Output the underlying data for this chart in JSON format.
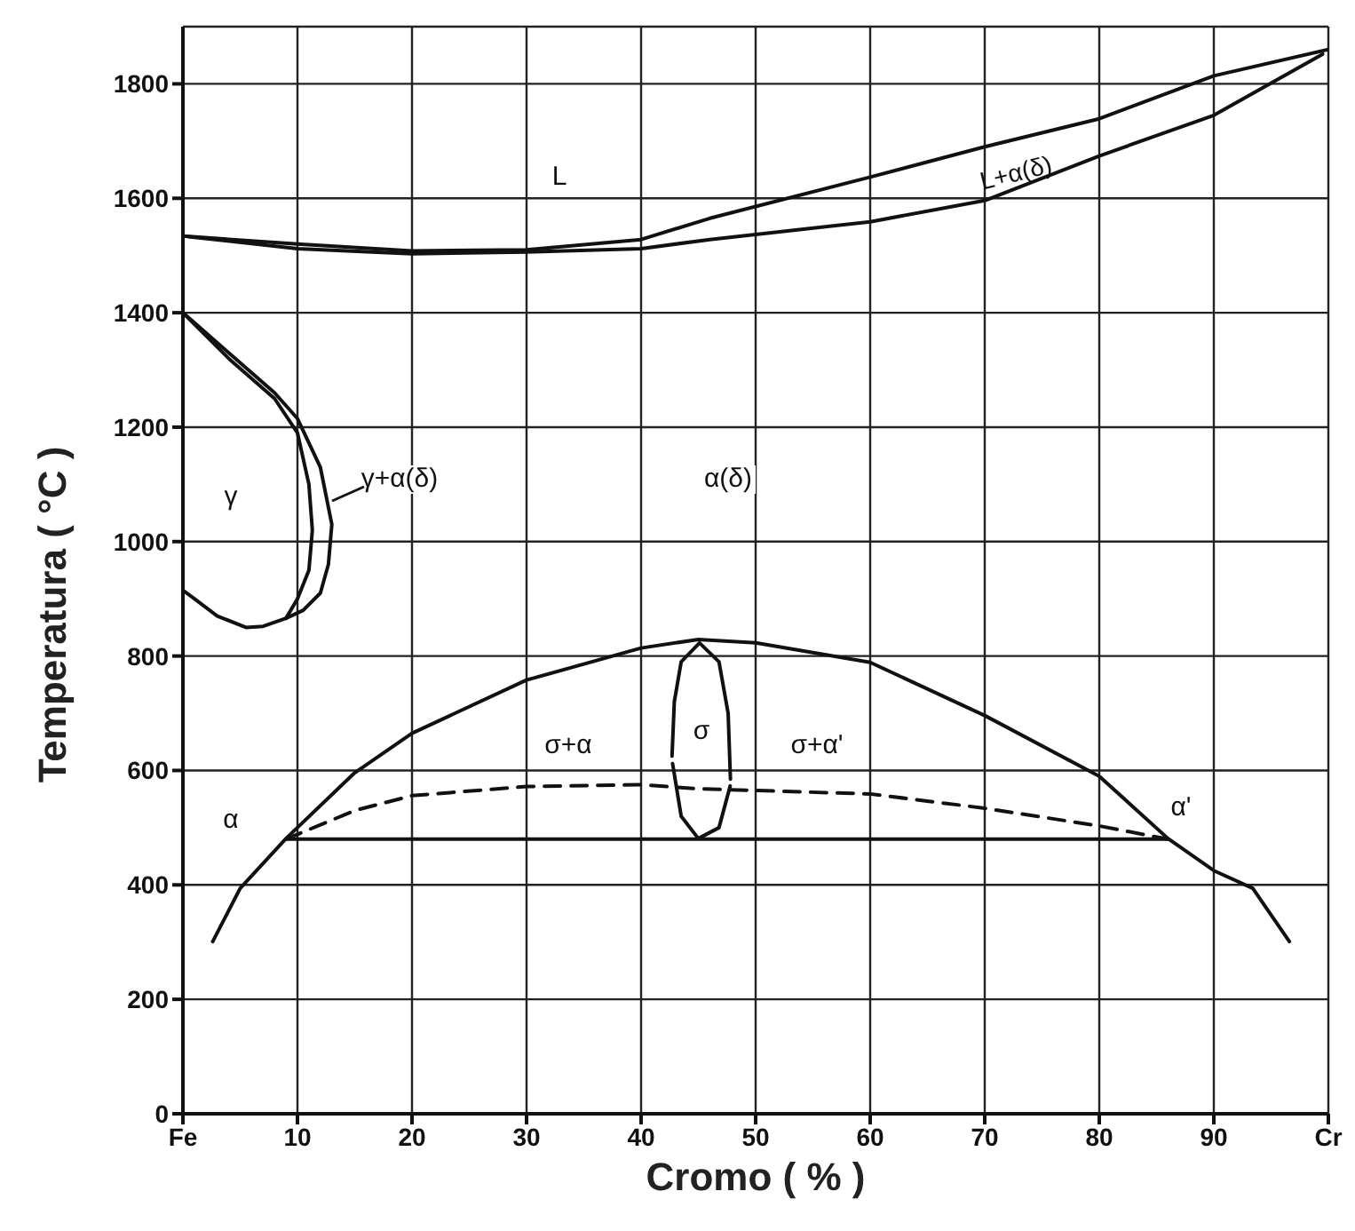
{
  "chart_data": {
    "type": "line",
    "xlabel": "Cromo ( % )",
    "ylabel": "Temperatura ( °C )",
    "xlim": [
      0,
      100
    ],
    "ylim": [
      0,
      1900
    ],
    "xticks": [
      {
        "value": 0,
        "label": "Fe"
      },
      10,
      20,
      30,
      40,
      50,
      60,
      70,
      80,
      90,
      {
        "value": 100,
        "label": "Cr"
      }
    ],
    "yticks": [
      0,
      200,
      400,
      600,
      800,
      1000,
      1200,
      1400,
      1600,
      1800
    ],
    "grid": true,
    "marker": "none",
    "series": [
      {
        "color": "#111111",
        "x": [
          0,
          10,
          20,
          30,
          40,
          46,
          60,
          70,
          80,
          90,
          100
        ],
        "values": [
          1534,
          1520,
          1508,
          1510,
          1528,
          1565,
          1637,
          1690,
          1739,
          1814,
          1860
        ]
      },
      {
        "color": "#111111",
        "x": [
          0.5,
          10,
          20,
          30,
          40,
          46,
          60,
          70,
          80,
          90,
          99.5
        ],
        "values": [
          1533,
          1512,
          1503,
          1506,
          1512,
          1528,
          1559,
          1596,
          1674,
          1745,
          1852
        ]
      },
      {
        "color": "#111111",
        "x": [
          0,
          4,
          8,
          10,
          12,
          13,
          12.7,
          12,
          10.5,
          9,
          7,
          5.5,
          3,
          1,
          0
        ],
        "values": [
          1400,
          1330,
          1260,
          1215,
          1130,
          1030,
          960,
          910,
          880,
          866,
          852,
          850,
          870,
          900,
          915
        ]
      },
      {
        "color": "#111111",
        "x": [
          0,
          4,
          8,
          10,
          11,
          11.3,
          11,
          10,
          9
        ],
        "values": [
          1400,
          1320,
          1250,
          1190,
          1100,
          1020,
          950,
          900,
          866
        ]
      },
      {
        "color": "#111111",
        "x": [
          2.6,
          5,
          9,
          15,
          20,
          30,
          40,
          45,
          50,
          60,
          70,
          80,
          86,
          90,
          93.4,
          96.6
        ],
        "values": [
          301,
          394,
          481,
          596,
          665,
          758,
          814,
          829,
          823,
          789,
          696,
          590,
          481,
          425,
          394,
          301
        ]
      },
      {
        "color": "#111111",
        "x": [
          9,
          86
        ],
        "values": [
          480,
          480
        ]
      },
      {
        "color": "#111111",
        "line_style": "dashed",
        "x": [
          9,
          15,
          20,
          30,
          40,
          45,
          50,
          60,
          70,
          80,
          86
        ],
        "values": [
          480,
          530,
          556,
          572,
          575,
          568,
          565,
          559,
          534,
          503,
          480
        ]
      },
      {
        "color": "#111111",
        "x": [
          42.7,
          42.9,
          43.5,
          45.1,
          46.8,
          47.6,
          47.8
        ],
        "values": [
          625,
          720,
          790,
          823,
          790,
          700,
          585
        ]
      },
      {
        "color": "#111111",
        "x": [
          42.75,
          43.5,
          45,
          46.8,
          47.78
        ],
        "values": [
          612,
          520,
          481,
          500,
          573
        ]
      }
    ],
    "annotations": [
      "L",
      "L+α(δ)",
      "γ",
      "γ+α(δ)",
      "α(δ)",
      "σ+α",
      "σ",
      "σ+α'",
      "α",
      "α'"
    ]
  }
}
